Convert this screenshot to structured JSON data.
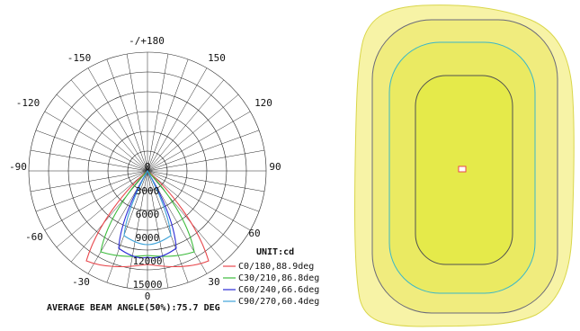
{
  "polar_diagram": {
    "angle_labels": {
      "top": "-/+180",
      "upper_left_150": "-150",
      "upper_right_150": "150",
      "left_120": "-120",
      "right_120": "120",
      "left_90": "-90",
      "right_90": "90",
      "left_60": "-60",
      "right_60": "60",
      "left_30": "-30",
      "right_30": "30",
      "bottom": "0"
    },
    "radial_labels": [
      "0",
      "3000",
      "6000",
      "9000",
      "12000",
      "15000"
    ],
    "unit": "UNIT:cd",
    "legend": [
      {
        "label": "C0/180,88.9deg",
        "color": "#e8474c"
      },
      {
        "label": "C30/210,86.8deg",
        "color": "#3dbb3d"
      },
      {
        "label": "C60/240,66.6deg",
        "color": "#2a2ad6"
      },
      {
        "label": "C90/270,60.4deg",
        "color": "#3fa3d9"
      }
    ],
    "caption": "AVERAGE BEAM ANGLE(50%):75.7 DEG"
  },
  "isolux_diagram": {
    "zone_colors": [
      "#f7f3a6",
      "#f0ec7e",
      "#eaea62",
      "#e5ea4a"
    ],
    "contour_colors": [
      "#d9d64a",
      "#6a6a7a",
      "#3ab7c8",
      "#505050"
    ],
    "center_marker_color": "#e8474c"
  }
}
